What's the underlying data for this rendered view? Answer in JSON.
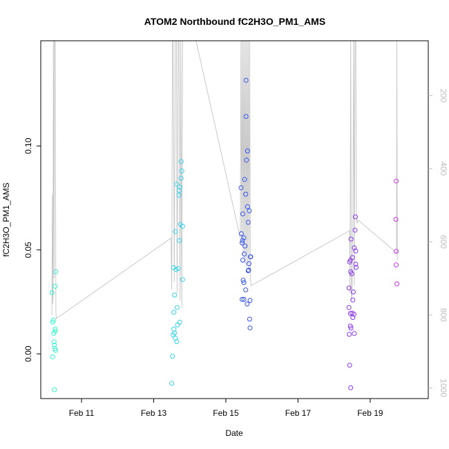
{
  "chart_data": {
    "type": "scatter",
    "title": "ATOM2 Northbound fC2H3O_PM1_AMS",
    "xlabel": "Date",
    "ylabel": "fC2H3O_PM1_AMS",
    "x_ticks": [
      {
        "x": 11,
        "label": "Feb 11"
      },
      {
        "x": 13,
        "label": "Feb 13"
      },
      {
        "x": 15,
        "label": "Feb 15"
      },
      {
        "x": 17,
        "label": "Feb 17"
      },
      {
        "x": 19,
        "label": "Feb 19"
      }
    ],
    "y_ticks": [
      {
        "y": 0.0,
        "label": "0.00"
      },
      {
        "y": 0.05,
        "label": "0.05"
      },
      {
        "y": 0.1,
        "label": "0.10"
      }
    ],
    "y2_ticks": [
      {
        "y": 200,
        "label": "200"
      },
      {
        "y": 400,
        "label": "400"
      },
      {
        "y": 600,
        "label": "600"
      },
      {
        "y": 800,
        "label": "800"
      },
      {
        "y": 1000,
        "label": "1000"
      }
    ],
    "xlim": [
      9.87,
      20.61
    ],
    "ylim": [
      -0.0215,
      0.1506
    ],
    "y2lim": [
      1029,
      50
    ],
    "grid": false,
    "legend": "none",
    "colors": {
      "line": "#c8c8c8",
      "right_axis": "#bdbdbd",
      "axis": "#000000"
    },
    "points": [
      {
        "x": 10.18,
        "y": 0.0295,
        "color": "#33f5cf"
      },
      {
        "x": 10.2,
        "y": 0.0152,
        "color": "#33f5cf"
      },
      {
        "x": 10.22,
        "y": 0.0162,
        "color": "#33f5cf"
      },
      {
        "x": 10.23,
        "y": 0.0099,
        "color": "#33f5cf"
      },
      {
        "x": 10.27,
        "y": 0.0109,
        "color": "#33f5cf"
      },
      {
        "x": 10.2,
        "y": -0.0014,
        "color": "#33f5cf"
      },
      {
        "x": 10.24,
        "y": 0.0058,
        "color": "#33f5cf"
      },
      {
        "x": 10.25,
        "y": 0.0042,
        "color": "#33f5cf"
      },
      {
        "x": 10.26,
        "y": 0.0025,
        "color": "#33f5cf"
      },
      {
        "x": 10.28,
        "y": 0.0017,
        "color": "#33f5cf"
      },
      {
        "x": 10.27,
        "y": 0.0325,
        "color": "#33f5cf"
      },
      {
        "x": 10.29,
        "y": 0.0395,
        "color": "#33f5cf"
      },
      {
        "x": 10.27,
        "y": 0.012,
        "color": "#33f5cf"
      },
      {
        "x": 10.25,
        "y": -0.0172,
        "color": "#33f5cf"
      },
      {
        "x": 13.5,
        "y": -0.0142,
        "color": "#33d3ee"
      },
      {
        "x": 13.52,
        "y": -0.0012,
        "color": "#33d3ee"
      },
      {
        "x": 13.54,
        "y": 0.0091,
        "color": "#33d3ee"
      },
      {
        "x": 13.56,
        "y": 0.0119,
        "color": "#33d3ee"
      },
      {
        "x": 13.58,
        "y": 0.01,
        "color": "#33d3ee"
      },
      {
        "x": 13.6,
        "y": 0.0075,
        "color": "#33d3ee"
      },
      {
        "x": 13.64,
        "y": 0.0059,
        "color": "#33d3ee"
      },
      {
        "x": 13.66,
        "y": 0.0139,
        "color": "#33d3ee"
      },
      {
        "x": 13.72,
        "y": 0.0152,
        "color": "#33d3ee"
      },
      {
        "x": 13.56,
        "y": 0.02,
        "color": "#33d3ee"
      },
      {
        "x": 13.65,
        "y": 0.0223,
        "color": "#33d3ee"
      },
      {
        "x": 13.58,
        "y": 0.0283,
        "color": "#33d3ee"
      },
      {
        "x": 13.8,
        "y": 0.0357,
        "color": "#33d3ee"
      },
      {
        "x": 13.55,
        "y": 0.0415,
        "color": "#33d3ee"
      },
      {
        "x": 13.62,
        "y": 0.0405,
        "color": "#33d3ee"
      },
      {
        "x": 13.68,
        "y": 0.0411,
        "color": "#33d3ee"
      },
      {
        "x": 13.71,
        "y": 0.0545,
        "color": "#33d3ee"
      },
      {
        "x": 13.6,
        "y": 0.0588,
        "color": "#33d3ee"
      },
      {
        "x": 13.74,
        "y": 0.0623,
        "color": "#33d3ee"
      },
      {
        "x": 13.8,
        "y": 0.0614,
        "color": "#33d3ee"
      },
      {
        "x": 13.7,
        "y": 0.0763,
        "color": "#33d3ee"
      },
      {
        "x": 13.71,
        "y": 0.0786,
        "color": "#33d3ee"
      },
      {
        "x": 13.64,
        "y": 0.0816,
        "color": "#33d3ee"
      },
      {
        "x": 13.72,
        "y": 0.0803,
        "color": "#33d3ee"
      },
      {
        "x": 13.76,
        "y": 0.0845,
        "color": "#33d3ee"
      },
      {
        "x": 13.78,
        "y": 0.088,
        "color": "#33d3ee"
      },
      {
        "x": 13.76,
        "y": 0.0925,
        "color": "#33d3ee"
      },
      {
        "x": 15.56,
        "y": 0.1316,
        "color": "#3351ee"
      },
      {
        "x": 15.56,
        "y": 0.1142,
        "color": "#3351ee"
      },
      {
        "x": 15.6,
        "y": 0.0976,
        "color": "#3351ee"
      },
      {
        "x": 15.57,
        "y": 0.0932,
        "color": "#3351ee"
      },
      {
        "x": 15.52,
        "y": 0.0839,
        "color": "#3351ee"
      },
      {
        "x": 15.42,
        "y": 0.0799,
        "color": "#3351ee"
      },
      {
        "x": 15.55,
        "y": 0.0768,
        "color": "#3351ee"
      },
      {
        "x": 15.6,
        "y": 0.0708,
        "color": "#3351ee"
      },
      {
        "x": 15.65,
        "y": 0.0688,
        "color": "#3351ee"
      },
      {
        "x": 15.47,
        "y": 0.0673,
        "color": "#3351ee"
      },
      {
        "x": 15.62,
        "y": 0.0633,
        "color": "#3351ee"
      },
      {
        "x": 15.43,
        "y": 0.0578,
        "color": "#3351ee"
      },
      {
        "x": 15.5,
        "y": 0.0558,
        "color": "#3351ee"
      },
      {
        "x": 15.46,
        "y": 0.0545,
        "color": "#3351ee"
      },
      {
        "x": 15.45,
        "y": 0.0534,
        "color": "#3351ee"
      },
      {
        "x": 15.53,
        "y": 0.0519,
        "color": "#3351ee"
      },
      {
        "x": 15.51,
        "y": 0.048,
        "color": "#3351ee"
      },
      {
        "x": 15.68,
        "y": 0.0467,
        "color": "#3351ee"
      },
      {
        "x": 15.69,
        "y": 0.0467,
        "color": "#3351ee"
      },
      {
        "x": 15.47,
        "y": 0.0451,
        "color": "#3351ee"
      },
      {
        "x": 15.64,
        "y": 0.0434,
        "color": "#3351ee"
      },
      {
        "x": 15.62,
        "y": 0.04,
        "color": "#3351ee"
      },
      {
        "x": 15.63,
        "y": 0.0403,
        "color": "#3351ee"
      },
      {
        "x": 15.48,
        "y": 0.0354,
        "color": "#3351ee"
      },
      {
        "x": 15.5,
        "y": 0.0343,
        "color": "#3351ee"
      },
      {
        "x": 15.55,
        "y": 0.0308,
        "color": "#3351ee"
      },
      {
        "x": 15.45,
        "y": 0.0262,
        "color": "#3351ee"
      },
      {
        "x": 15.5,
        "y": 0.0262,
        "color": "#3351ee"
      },
      {
        "x": 15.67,
        "y": 0.0257,
        "color": "#3351ee"
      },
      {
        "x": 15.59,
        "y": 0.024,
        "color": "#3351ee"
      },
      {
        "x": 15.66,
        "y": 0.0167,
        "color": "#3351ee"
      },
      {
        "x": 15.67,
        "y": 0.0125,
        "color": "#3351ee"
      },
      {
        "x": 18.43,
        "y": -0.0055,
        "color": "#8a33ee"
      },
      {
        "x": 18.46,
        "y": -0.0163,
        "color": "#8a33ee"
      },
      {
        "x": 18.47,
        "y": 0.0552,
        "color": "#8a33ee"
      },
      {
        "x": 18.43,
        "y": 0.0442,
        "color": "#8a33ee"
      },
      {
        "x": 18.45,
        "y": 0.045,
        "color": "#8a33ee"
      },
      {
        "x": 18.46,
        "y": 0.0395,
        "color": "#8a33ee"
      },
      {
        "x": 18.49,
        "y": 0.0386,
        "color": "#8a33ee"
      },
      {
        "x": 18.41,
        "y": 0.0317,
        "color": "#8a33ee"
      },
      {
        "x": 18.53,
        "y": 0.0298,
        "color": "#8a33ee"
      },
      {
        "x": 18.52,
        "y": 0.0259,
        "color": "#8a33ee"
      },
      {
        "x": 18.41,
        "y": 0.0223,
        "color": "#8a33ee"
      },
      {
        "x": 18.45,
        "y": 0.0194,
        "color": "#8a33ee"
      },
      {
        "x": 18.5,
        "y": 0.0196,
        "color": "#8a33ee"
      },
      {
        "x": 18.55,
        "y": 0.0191,
        "color": "#8a33ee"
      },
      {
        "x": 18.52,
        "y": 0.0175,
        "color": "#8a33ee"
      },
      {
        "x": 18.45,
        "y": 0.0134,
        "color": "#8a33ee"
      },
      {
        "x": 18.47,
        "y": 0.0124,
        "color": "#8a33ee"
      },
      {
        "x": 18.42,
        "y": 0.0094,
        "color": "#8a33ee"
      },
      {
        "x": 18.56,
        "y": 0.0098,
        "color": "#8a33ee"
      },
      {
        "x": 18.51,
        "y": 0.0463,
        "color": "#8a33ee"
      },
      {
        "x": 18.56,
        "y": 0.051,
        "color": "#8a33ee"
      },
      {
        "x": 18.6,
        "y": 0.0495,
        "color": "#8a33ee"
      },
      {
        "x": 18.58,
        "y": 0.0595,
        "color": "#8a33ee"
      },
      {
        "x": 18.59,
        "y": 0.0659,
        "color": "#8a33ee"
      },
      {
        "x": 18.6,
        "y": 0.0432,
        "color": "#8a33ee"
      },
      {
        "x": 18.61,
        "y": 0.0416,
        "color": "#8a33ee"
      },
      {
        "x": 19.72,
        "y": 0.0831,
        "color": "#d033ee"
      },
      {
        "x": 19.71,
        "y": 0.0647,
        "color": "#d033ee"
      },
      {
        "x": 19.72,
        "y": 0.0493,
        "color": "#d033ee"
      },
      {
        "x": 19.72,
        "y": 0.0428,
        "color": "#d033ee"
      },
      {
        "x": 19.74,
        "y": 0.0337,
        "color": "#d033ee"
      }
    ],
    "secondary_line": {
      "axis": "right",
      "x": [
        10.18,
        10.19,
        10.2,
        10.21,
        10.22,
        10.24,
        10.25,
        10.27,
        10.29,
        10.3,
        13.48,
        13.5,
        13.52,
        13.54,
        13.57,
        13.6,
        13.63,
        13.65,
        13.68,
        13.7,
        13.73,
        13.75,
        13.78,
        13.8,
        14.15,
        15.4,
        15.42,
        15.44,
        15.46,
        15.48,
        15.5,
        15.52,
        15.54,
        15.56,
        15.58,
        15.6,
        15.62,
        15.64,
        15.66,
        15.68,
        15.7,
        18.43,
        18.44,
        18.46,
        18.48,
        18.5,
        18.52,
        18.54,
        18.56,
        18.58,
        18.6,
        18.62,
        18.64,
        18.66,
        19.73,
        19.74,
        19.75
      ],
      "y": [
        800,
        470,
        770,
        750,
        40,
        700,
        40,
        40,
        790,
        810,
        590,
        730,
        40,
        40,
        710,
        40,
        40,
        740,
        40,
        40,
        760,
        40,
        780,
        40,
        40,
        590,
        40,
        610,
        40,
        640,
        40,
        660,
        40,
        670,
        40,
        660,
        40,
        680,
        40,
        700,
        720,
        570,
        740,
        40,
        760,
        740,
        540,
        40,
        720,
        40,
        40,
        540,
        550,
        540,
        630,
        40,
        650
      ]
    }
  }
}
